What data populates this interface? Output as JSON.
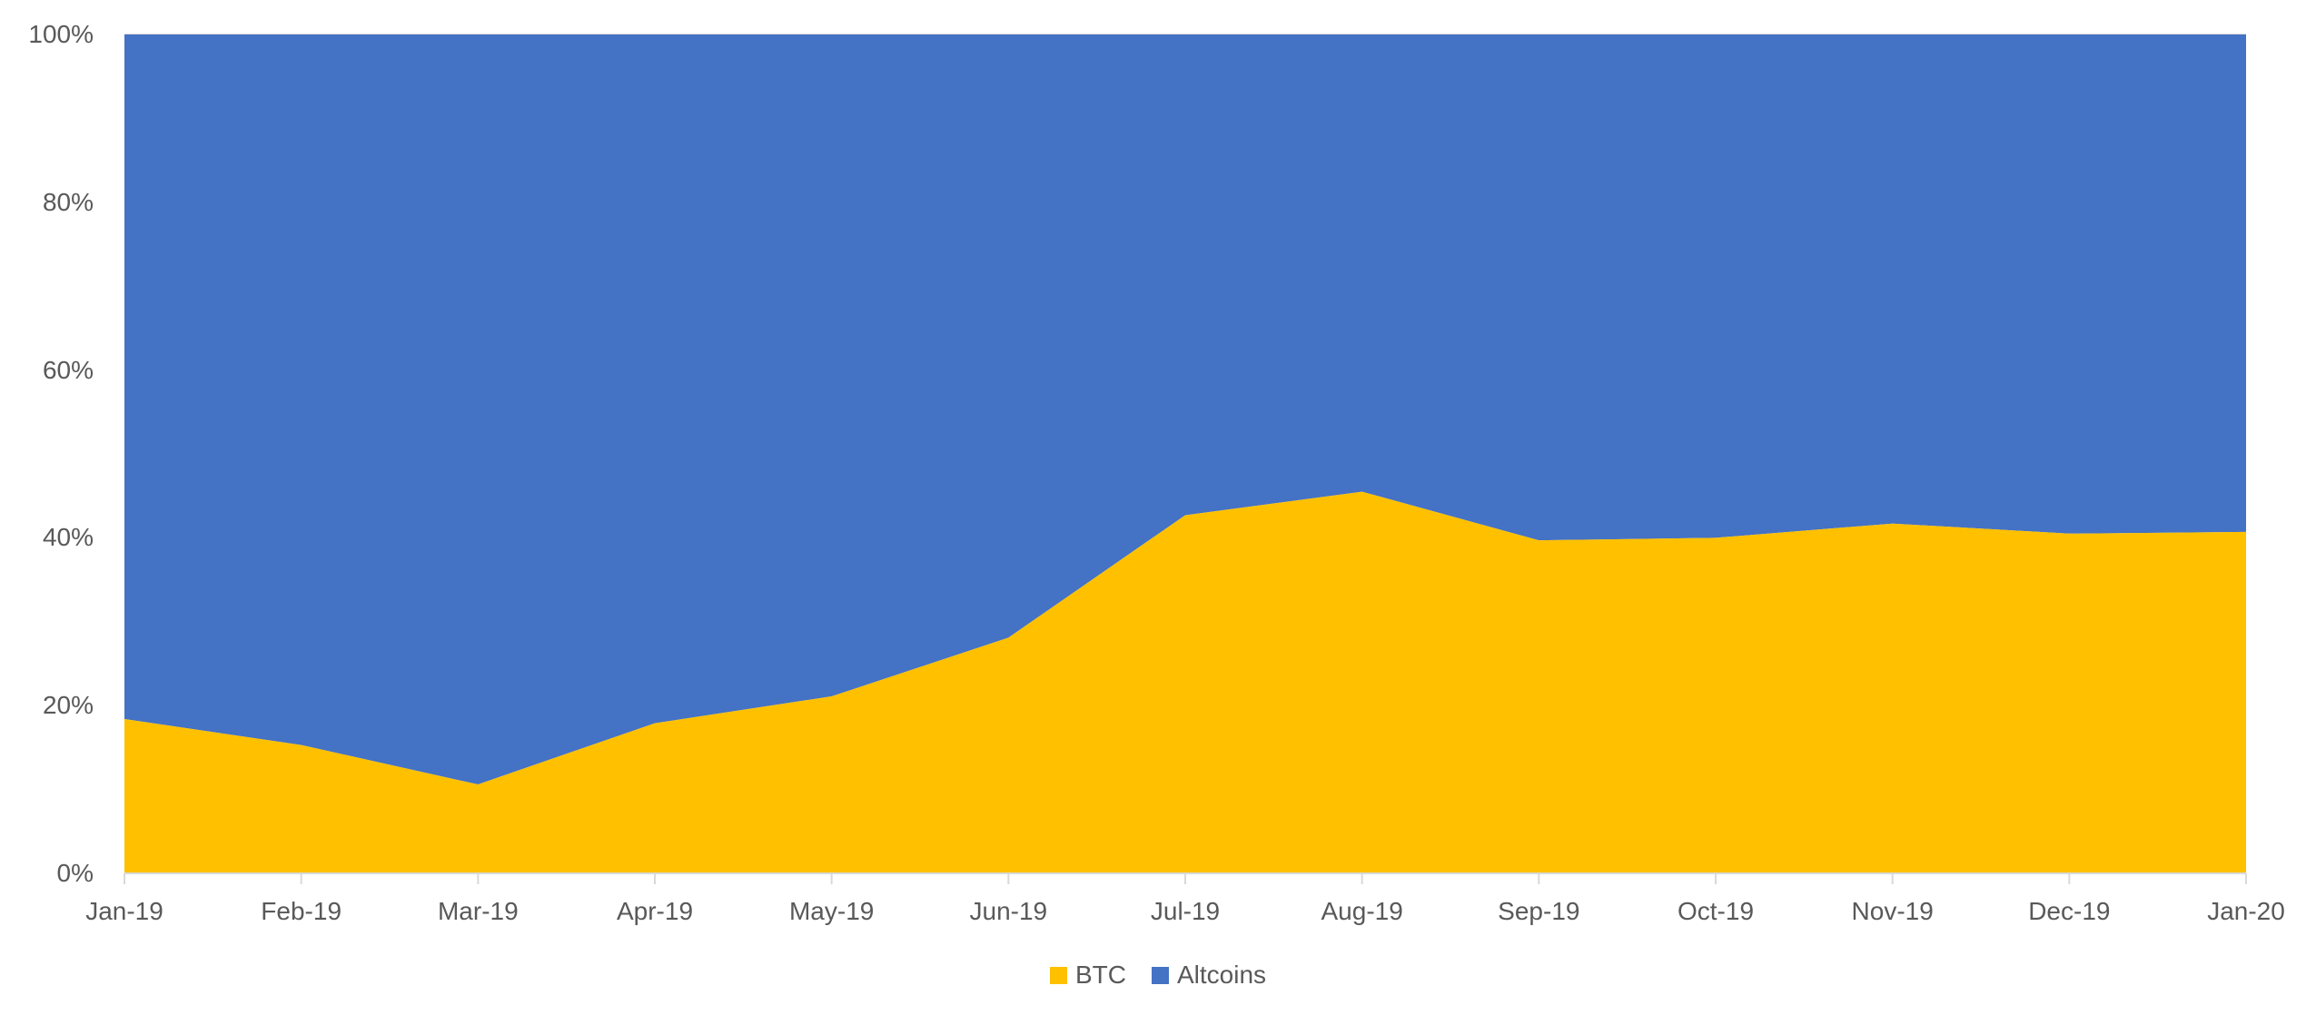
{
  "chart_data": {
    "type": "area",
    "stacked": "percent",
    "title": "",
    "xlabel": "",
    "ylabel": "",
    "categories": [
      "Jan-19",
      "Feb-19",
      "Mar-19",
      "Apr-19",
      "May-19",
      "Jun-19",
      "Jul-19",
      "Aug-19",
      "Sep-19",
      "Oct-19",
      "Nov-19",
      "Dec-19",
      "Jan-20"
    ],
    "series": [
      {
        "name": "BTC",
        "color": "#FFC000",
        "values": [
          18.4,
          15.3,
          10.6,
          17.9,
          21.1,
          28.1,
          42.7,
          45.5,
          39.7,
          40.0,
          41.7,
          40.5,
          40.7
        ]
      },
      {
        "name": "Altcoins",
        "color": "#4472C4",
        "values": [
          81.6,
          84.7,
          89.4,
          82.1,
          78.9,
          71.9,
          57.3,
          54.5,
          60.3,
          60.0,
          58.3,
          59.5,
          59.3
        ]
      }
    ],
    "yticks": [
      "0%",
      "20%",
      "40%",
      "60%",
      "80%",
      "100%"
    ],
    "ylim": [
      0,
      100
    ],
    "grid": false,
    "legend_position": "bottom"
  },
  "legend": {
    "items": [
      {
        "label": "BTC",
        "color": "#FFC000"
      },
      {
        "label": "Altcoins",
        "color": "#4472C4"
      }
    ]
  }
}
